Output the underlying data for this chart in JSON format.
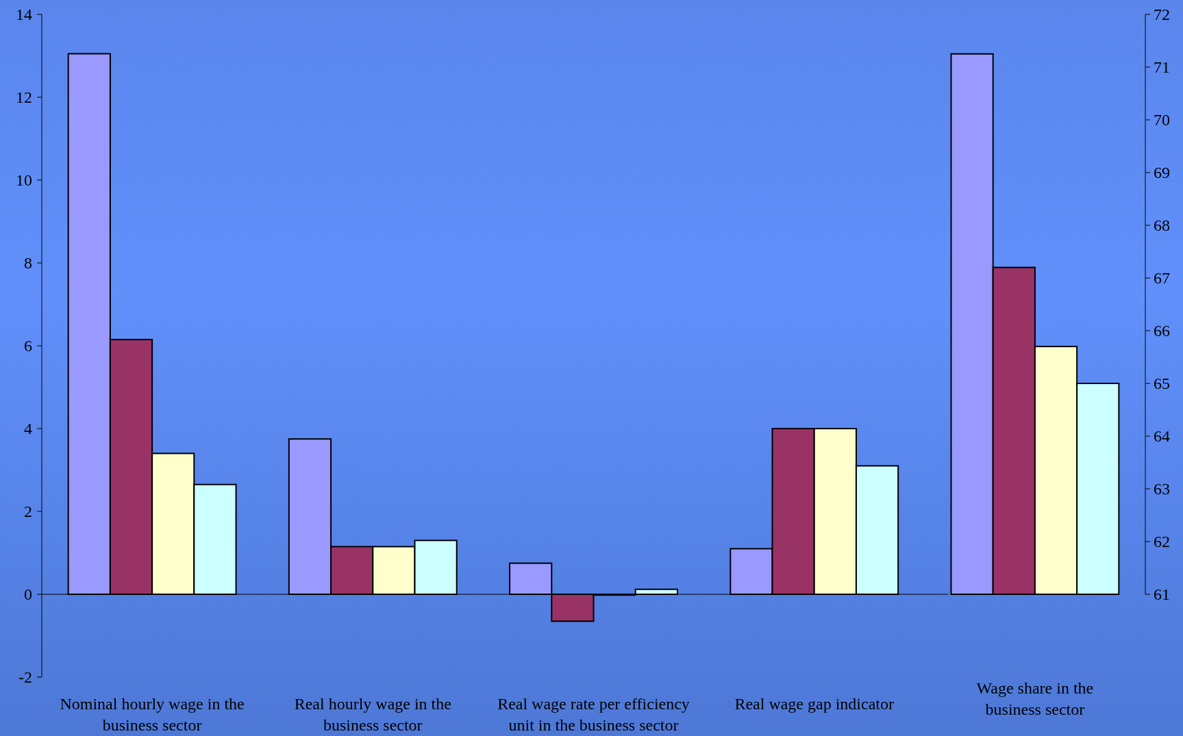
{
  "chart_data": {
    "type": "bar",
    "categories": [
      "Nominal hourly wage in the business sector",
      "Real hourly wage in the business sector",
      "Real wage rate per efficiency unit in the business sector",
      "Real wage gap indicator",
      "Wage share in the business sector"
    ],
    "series": [
      {
        "color": "#9999ff",
        "values": [
          13.05,
          3.75,
          0.75,
          1.1,
          null
        ]
      },
      {
        "color": "#993366",
        "values": [
          6.15,
          1.15,
          -0.65,
          4.0,
          null
        ]
      },
      {
        "color": "#ffffcc",
        "values": [
          3.4,
          1.15,
          -0.02,
          4.0,
          null
        ]
      },
      {
        "color": "#ccffff",
        "values": [
          2.65,
          1.3,
          0.12,
          3.1,
          null
        ]
      },
      {
        "color": "#9999ff",
        "axis": "y2",
        "base": [
          null,
          null,
          null,
          null,
          61
        ],
        "values": [
          null,
          null,
          null,
          null,
          10.25
        ]
      },
      {
        "color": "#993366",
        "axis": "y2",
        "base": [
          null,
          null,
          null,
          null,
          61
        ],
        "values": [
          null,
          null,
          null,
          null,
          6.2
        ]
      },
      {
        "color": "#ffffcc",
        "axis": "y2",
        "base": [
          null,
          null,
          null,
          null,
          61
        ],
        "values": [
          null,
          null,
          null,
          null,
          4.7
        ]
      },
      {
        "color": "#ccffff",
        "axis": "y2",
        "base": [
          null,
          null,
          null,
          null,
          61
        ],
        "values": [
          null,
          null,
          null,
          null,
          4.0
        ]
      }
    ],
    "ylim": [
      -2,
      14
    ],
    "yticks": [
      -2,
      0,
      2,
      4,
      6,
      8,
      10,
      12,
      14
    ],
    "y2lim": [
      61,
      72
    ],
    "y2ticks": [
      61,
      62,
      63,
      64,
      65,
      66,
      67,
      68,
      69,
      70,
      71,
      72
    ]
  }
}
